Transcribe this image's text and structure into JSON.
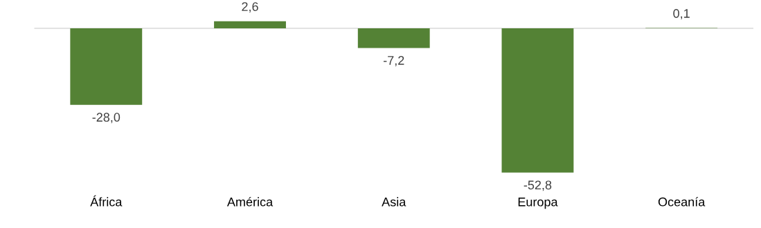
{
  "chart_data": {
    "type": "bar",
    "categories": [
      "África",
      "América",
      "Asia",
      "Europa",
      "Oceanía"
    ],
    "values": [
      -28.0,
      2.6,
      -7.2,
      -52.8,
      0.1
    ],
    "value_labels": [
      "-28,0",
      "2,6",
      "-7,2",
      "-52,8",
      "0,1"
    ],
    "color": "#548235",
    "grid": false,
    "legend": false
  }
}
